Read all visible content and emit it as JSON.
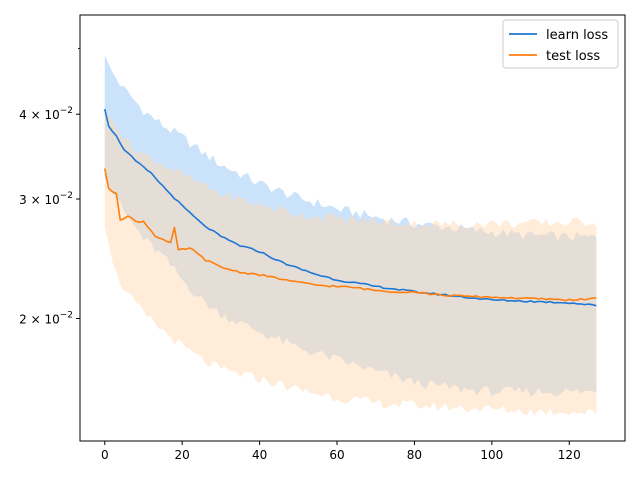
{
  "chart_data": {
    "type": "line",
    "title": "",
    "xlabel": "",
    "ylabel": "",
    "y_scale": "log",
    "xlim": [
      -6.4,
      134.4
    ],
    "ylim": [
      0.0132,
      0.056
    ],
    "x_ticks": [
      0,
      20,
      40,
      60,
      80,
      100,
      120
    ],
    "x_tick_labels": [
      "0",
      "20",
      "40",
      "60",
      "80",
      "100",
      "120"
    ],
    "y_ticks": [
      0.02,
      0.03,
      0.04
    ],
    "y_tick_labels": [
      {
        "mantissa": "2",
        "times": "×",
        "base": "10",
        "exp": "−2"
      },
      {
        "mantissa": "3",
        "times": "×",
        "base": "10",
        "exp": "−2"
      },
      {
        "mantissa": "4",
        "times": "×",
        "base": "10",
        "exp": "−2"
      }
    ],
    "y_minor_ticks": [
      0.05
    ],
    "legend_position": "top-right",
    "grid": false,
    "x_count": 128,
    "series": [
      {
        "name": "learn loss",
        "color": "#1f77d4",
        "band_color": "#a6cff7",
        "keypoints": [
          [
            0,
            0.0408
          ],
          [
            1,
            0.0385
          ],
          [
            3,
            0.0371
          ],
          [
            5,
            0.0355
          ],
          [
            8,
            0.0341
          ],
          [
            12,
            0.0327
          ],
          [
            16,
            0.0309
          ],
          [
            20,
            0.0293
          ],
          [
            25,
            0.0276
          ],
          [
            30,
            0.0264
          ],
          [
            35,
            0.0256
          ],
          [
            40,
            0.0251
          ],
          [
            45,
            0.0243
          ],
          [
            50,
            0.0237
          ],
          [
            55,
            0.0232
          ],
          [
            60,
            0.0228
          ],
          [
            70,
            0.0223
          ],
          [
            80,
            0.0219
          ],
          [
            90,
            0.0216
          ],
          [
            100,
            0.0213
          ],
          [
            110,
            0.0212
          ],
          [
            120,
            0.0211
          ],
          [
            127,
            0.0209
          ]
        ],
        "upper_keypoints": [
          [
            0,
            0.0489
          ],
          [
            2,
            0.046
          ],
          [
            5,
            0.0435
          ],
          [
            10,
            0.0405
          ],
          [
            15,
            0.0385
          ],
          [
            20,
            0.037
          ],
          [
            25,
            0.0352
          ],
          [
            30,
            0.0337
          ],
          [
            40,
            0.0316
          ],
          [
            50,
            0.0301
          ],
          [
            60,
            0.029
          ],
          [
            70,
            0.0282
          ],
          [
            80,
            0.0276
          ],
          [
            90,
            0.0272
          ],
          [
            100,
            0.0268
          ],
          [
            110,
            0.0265
          ],
          [
            120,
            0.0264
          ],
          [
            127,
            0.0263
          ]
        ],
        "lower_keypoints": [
          [
            0,
            0.0321
          ],
          [
            5,
            0.0287
          ],
          [
            10,
            0.0262
          ],
          [
            15,
            0.0247
          ],
          [
            20,
            0.0228
          ],
          [
            25,
            0.0213
          ],
          [
            30,
            0.0203
          ],
          [
            40,
            0.0191
          ],
          [
            50,
            0.0181
          ],
          [
            60,
            0.0174
          ],
          [
            70,
            0.0167
          ],
          [
            80,
            0.0161
          ],
          [
            90,
            0.0158
          ],
          [
            100,
            0.0156
          ],
          [
            110,
            0.0156
          ],
          [
            120,
            0.0156
          ],
          [
            127,
            0.0156
          ]
        ]
      },
      {
        "name": "test loss",
        "color": "#ff7f0e",
        "band_color": "#ffd9b4",
        "keypoints": [
          [
            0,
            0.0333
          ],
          [
            1,
            0.031
          ],
          [
            3,
            0.0306
          ],
          [
            4,
            0.028
          ],
          [
            6,
            0.0283
          ],
          [
            8,
            0.0278
          ],
          [
            10,
            0.0278
          ],
          [
            13,
            0.0265
          ],
          [
            17,
            0.0258
          ],
          [
            18,
            0.0272
          ],
          [
            19,
            0.0252
          ],
          [
            22,
            0.0254
          ],
          [
            26,
            0.0244
          ],
          [
            30,
            0.0238
          ],
          [
            35,
            0.0234
          ],
          [
            40,
            0.0232
          ],
          [
            45,
            0.0229
          ],
          [
            50,
            0.0226
          ],
          [
            55,
            0.0224
          ],
          [
            60,
            0.0223
          ],
          [
            65,
            0.0222
          ],
          [
            70,
            0.022
          ],
          [
            75,
            0.0219
          ],
          [
            80,
            0.0219
          ],
          [
            85,
            0.0217
          ],
          [
            90,
            0.0216
          ],
          [
            100,
            0.0215
          ],
          [
            110,
            0.0214
          ],
          [
            120,
            0.0213
          ],
          [
            127,
            0.0214
          ]
        ],
        "upper_keypoints": [
          [
            0,
            0.0403
          ],
          [
            3,
            0.0387
          ],
          [
            6,
            0.0362
          ],
          [
            10,
            0.0349
          ],
          [
            15,
            0.0338
          ],
          [
            20,
            0.0326
          ],
          [
            25,
            0.0315
          ],
          [
            30,
            0.0305
          ],
          [
            40,
            0.0294
          ],
          [
            50,
            0.0285
          ],
          [
            60,
            0.0281
          ],
          [
            70,
            0.0278
          ],
          [
            80,
            0.0276
          ],
          [
            90,
            0.0275
          ],
          [
            100,
            0.0276
          ],
          [
            110,
            0.0276
          ],
          [
            120,
            0.0277
          ],
          [
            127,
            0.0278
          ]
        ],
        "lower_keypoints": [
          [
            0,
            0.0272
          ],
          [
            3,
            0.0232
          ],
          [
            6,
            0.0217
          ],
          [
            10,
            0.0203
          ],
          [
            15,
            0.0192
          ],
          [
            20,
            0.0182
          ],
          [
            25,
            0.0174
          ],
          [
            30,
            0.0168
          ],
          [
            40,
            0.0163
          ],
          [
            50,
            0.0157
          ],
          [
            60,
            0.0153
          ],
          [
            70,
            0.015
          ],
          [
            80,
            0.0149
          ],
          [
            90,
            0.0148
          ],
          [
            100,
            0.0147
          ],
          [
            110,
            0.0146
          ],
          [
            120,
            0.0146
          ],
          [
            127,
            0.0145
          ]
        ]
      }
    ]
  }
}
